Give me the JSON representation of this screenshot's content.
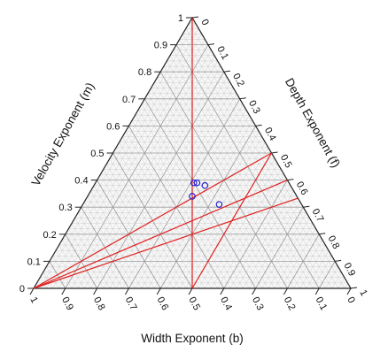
{
  "chart_data": {
    "type": "ternary",
    "title": "",
    "axes": {
      "left": {
        "label": "Velocity Exponent (m)",
        "ticks": [
          "0",
          "0.1",
          "0.2",
          "0.3",
          "0.4",
          "0.5",
          "0.6",
          "0.7",
          "0.8",
          "0.9",
          "1"
        ]
      },
      "right": {
        "label": "Depth Exponent (f)",
        "ticks": [
          "0",
          "0.1",
          "0.2",
          "0.3",
          "0.4",
          "0.5",
          "0.6",
          "0.7",
          "0.8",
          "0.9",
          "1"
        ]
      },
      "bottom": {
        "label": "Width Exponent (b)",
        "ticks": [
          "1",
          "0.9",
          "0.8",
          "0.7",
          "0.6",
          "0.5",
          "0.4",
          "0.3",
          "0.2",
          "0.1",
          "0"
        ]
      }
    },
    "grid": true,
    "grid_step": 0.02,
    "points": [
      {
        "b": 0.3,
        "f": 0.31,
        "m": 0.39
      },
      {
        "b": 0.29,
        "f": 0.32,
        "m": 0.39
      },
      {
        "b": 0.27,
        "f": 0.35,
        "m": 0.38
      },
      {
        "b": 0.33,
        "f": 0.33,
        "m": 0.34
      },
      {
        "b": 0.26,
        "f": 0.43,
        "m": 0.31
      }
    ],
    "reference_lines": [
      {
        "from": {
          "b": 0.0,
          "f": 0.5,
          "m": 0.5
        },
        "to": {
          "b": 0.5,
          "f": 0.5,
          "m": 0.0
        }
      },
      {
        "from": {
          "b": 1.0,
          "f": 0.0,
          "m": 0.0
        },
        "to": {
          "b": 0.0,
          "f": 0.5,
          "m": 0.5
        }
      },
      {
        "from": {
          "b": 1.0,
          "f": 0.0,
          "m": 0.0
        },
        "to": {
          "b": 0.0,
          "f": 0.6,
          "m": 0.4
        }
      },
      {
        "from": {
          "b": 1.0,
          "f": 0.0,
          "m": 0.0
        },
        "to": {
          "b": 0.0,
          "f": 0.667,
          "m": 0.333
        }
      },
      {
        "from": {
          "b": 0.0,
          "f": 0.0,
          "m": 1.0
        },
        "to": {
          "b": 0.5,
          "f": 0.5,
          "m": 0.0
        }
      }
    ],
    "colors": {
      "reference_line": "#e02020",
      "points": "#2222cc",
      "grid": "#c8c8c8",
      "frame": "#222222"
    }
  }
}
